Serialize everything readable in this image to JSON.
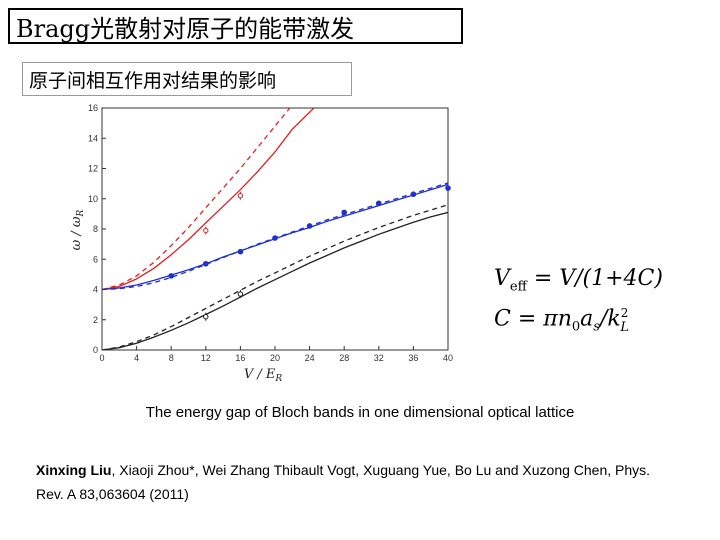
{
  "slide": {
    "title": "Bragg光散射对原子的能带激发",
    "subtitle": "原子间相互作用对结果的影响",
    "caption": "The energy gap of Bloch bands in one dimensional optical lattice",
    "authors_bold": "Xinxing Liu",
    "authors_rest": ", Xiaoji Zhou*, Wei Zhang Thibault Vogt, Xuguang Yue, Bo Lu and Xuzong Chen, Phys. Rev. A 83,063604 (2011)",
    "equation1": "Veff = V/(1+4C)",
    "equation2": "C = πn0as/kL²"
  },
  "chart_data": {
    "type": "line",
    "xlabel": "V/E_R",
    "ylabel": "ω/ω_R",
    "xlim": [
      0,
      40
    ],
    "ylim": [
      0,
      16
    ],
    "xticks": [
      0,
      4,
      8,
      12,
      16,
      20,
      24,
      28,
      32,
      36,
      40
    ],
    "yticks": [
      0,
      2,
      4,
      6,
      8,
      10,
      12,
      14,
      16
    ],
    "series": [
      {
        "group": "red-solid",
        "color": "#e02020",
        "dash": "",
        "x": [
          0,
          2,
          4,
          6,
          8,
          10,
          12,
          14,
          16,
          18,
          20,
          22,
          24.5
        ],
        "y": [
          4,
          4.2,
          4.7,
          5.4,
          6.3,
          7.3,
          8.4,
          9.5,
          10.6,
          11.8,
          13.1,
          14.6,
          16
        ]
      },
      {
        "group": "red-dashed",
        "color": "#e02020",
        "dash": "5,4",
        "x": [
          0,
          2,
          4,
          6,
          8,
          10,
          12,
          14,
          16,
          18,
          20,
          22,
          23.5
        ],
        "y": [
          4,
          4.3,
          4.9,
          5.8,
          6.9,
          8.1,
          9.4,
          10.7,
          12.0,
          13.4,
          14.8,
          16.2,
          17
        ]
      },
      {
        "group": "blue-solid",
        "color": "#2030d0",
        "dash": "",
        "x": [
          0,
          2,
          4,
          6,
          8,
          10,
          12,
          14,
          16,
          18,
          20,
          22,
          24,
          26,
          28,
          30,
          32,
          34,
          36,
          38,
          40
        ],
        "y": [
          4,
          4.1,
          4.3,
          4.6,
          4.95,
          5.3,
          5.7,
          6.15,
          6.55,
          6.95,
          7.35,
          7.75,
          8.1,
          8.5,
          8.85,
          9.2,
          9.55,
          9.9,
          10.25,
          10.6,
          10.95
        ]
      },
      {
        "group": "blue-dashed",
        "color": "#2030d0",
        "dash": "5,4",
        "x": [
          0,
          2,
          4,
          6,
          8,
          10,
          12,
          14,
          16,
          18,
          20,
          22,
          24,
          26,
          28,
          30,
          32,
          34,
          36,
          38,
          40
        ],
        "y": [
          4,
          4.05,
          4.2,
          4.45,
          4.8,
          5.2,
          5.65,
          6.1,
          6.55,
          7.0,
          7.4,
          7.8,
          8.2,
          8.6,
          8.95,
          9.3,
          9.65,
          10.0,
          10.35,
          10.7,
          11.05
        ]
      },
      {
        "group": "black-solid",
        "color": "#222222",
        "dash": "",
        "x": [
          0,
          2,
          4,
          6,
          8,
          10,
          12,
          14,
          16,
          18,
          20,
          22,
          24,
          26,
          28,
          30,
          32,
          34,
          36,
          38,
          40
        ],
        "y": [
          0,
          0.15,
          0.45,
          0.85,
          1.3,
          1.8,
          2.35,
          2.9,
          3.5,
          4.1,
          4.65,
          5.2,
          5.75,
          6.25,
          6.75,
          7.2,
          7.65,
          8.05,
          8.45,
          8.8,
          9.1
        ]
      },
      {
        "group": "black-dashed",
        "color": "#222222",
        "dash": "5,4",
        "x": [
          0,
          2,
          4,
          6,
          8,
          10,
          12,
          14,
          16,
          18,
          20,
          22,
          24,
          26,
          28,
          30,
          32,
          34,
          36,
          38,
          40
        ],
        "y": [
          0,
          0.2,
          0.55,
          1.0,
          1.55,
          2.15,
          2.75,
          3.35,
          3.95,
          4.55,
          5.1,
          5.65,
          6.2,
          6.7,
          7.2,
          7.65,
          8.1,
          8.5,
          8.9,
          9.25,
          9.6
        ]
      }
    ],
    "points": {
      "blue_filled": {
        "x": [
          8,
          12,
          16,
          20,
          24,
          28,
          32,
          36,
          40
        ],
        "y": [
          4.9,
          5.7,
          6.5,
          7.4,
          8.2,
          9.1,
          9.7,
          10.3,
          10.7
        ]
      },
      "red_errorbar": {
        "x": [
          12,
          16
        ],
        "y": [
          7.9,
          10.2
        ]
      },
      "black_errorbar": {
        "x": [
          12,
          16
        ],
        "y": [
          2.2,
          3.7
        ]
      }
    },
    "colors": {
      "red": "#e02020",
      "blue": "#2030d0",
      "black": "#222222"
    }
  }
}
